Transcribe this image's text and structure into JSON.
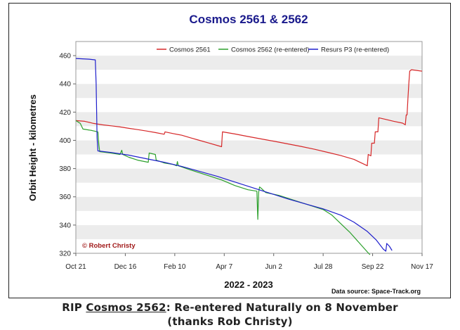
{
  "caption": {
    "prefix": "RIP ",
    "link_text": "Cosmos 2562",
    "suffix": ":  Re-entered Naturally on 8 November",
    "line2": "(thanks Rob Christy)"
  },
  "chart_data": {
    "type": "line",
    "title": "Cosmos 2561 & 2562",
    "xlabel": "2022 - 2023",
    "ylabel": "Orbit Height - kilometres",
    "ylim": [
      320,
      470
    ],
    "yticks": [
      320,
      340,
      360,
      380,
      400,
      420,
      440,
      460
    ],
    "xlim": [
      0,
      392
    ],
    "xticks": [
      {
        "label": "Oct 21",
        "day": 0
      },
      {
        "label": "Dec 16",
        "day": 56
      },
      {
        "label": "Feb 10",
        "day": 112
      },
      {
        "label": "Apr 7",
        "day": 168
      },
      {
        "label": "Jun 2",
        "day": 224
      },
      {
        "label": "Jul 28",
        "day": 280
      },
      {
        "label": "Sep 22",
        "day": 336
      },
      {
        "label": "Nov 17",
        "day": 392
      }
    ],
    "grid": true,
    "watermark": "© Robert Christy",
    "source_note": "Data source: Space-Track.org",
    "legend_position": "top",
    "series": [
      {
        "name": "Cosmos 2561",
        "color": "#d62728",
        "points": [
          [
            0,
            414
          ],
          [
            10,
            413.5
          ],
          [
            20,
            412
          ],
          [
            30,
            411
          ],
          [
            40,
            410.3
          ],
          [
            50,
            409.5
          ],
          [
            60,
            408.5
          ],
          [
            70,
            407.6
          ],
          [
            80,
            406.6
          ],
          [
            90,
            405.5
          ],
          [
            100,
            404.3
          ],
          [
            101,
            406
          ],
          [
            110,
            404.8
          ],
          [
            120,
            403.6
          ],
          [
            130,
            401.8
          ],
          [
            140,
            400
          ],
          [
            150,
            398.2
          ],
          [
            165,
            395.5
          ],
          [
            166,
            406
          ],
          [
            180,
            404.5
          ],
          [
            195,
            402.7
          ],
          [
            210,
            401
          ],
          [
            225,
            399.3
          ],
          [
            240,
            397.5
          ],
          [
            255,
            395.7
          ],
          [
            270,
            393.7
          ],
          [
            285,
            391.5
          ],
          [
            300,
            389.2
          ],
          [
            315,
            386.5
          ],
          [
            330,
            382
          ],
          [
            331,
            390
          ],
          [
            334,
            389
          ],
          [
            335,
            398
          ],
          [
            338,
            398
          ],
          [
            339,
            406
          ],
          [
            342,
            406
          ],
          [
            343,
            416
          ],
          [
            350,
            415
          ],
          [
            360,
            413.5
          ],
          [
            370,
            412.2
          ],
          [
            373,
            411
          ],
          [
            374,
            418
          ],
          [
            375,
            418
          ],
          [
            376,
            430
          ],
          [
            377,
            440
          ],
          [
            378,
            449
          ],
          [
            380,
            450
          ],
          [
            392,
            449
          ]
        ]
      },
      {
        "name": "Cosmos 2562 (re-entered)",
        "color": "#2ca02c",
        "points": [
          [
            0,
            414
          ],
          [
            5,
            412
          ],
          [
            8,
            408
          ],
          [
            18,
            407
          ],
          [
            25,
            406
          ],
          [
            26,
            397
          ],
          [
            27,
            392
          ],
          [
            40,
            391
          ],
          [
            50,
            390
          ],
          [
            52,
            393
          ],
          [
            53,
            390
          ],
          [
            60,
            388
          ],
          [
            70,
            386
          ],
          [
            82,
            384.5
          ],
          [
            83,
            391
          ],
          [
            90,
            390
          ],
          [
            91,
            386
          ],
          [
            100,
            384
          ],
          [
            110,
            383
          ],
          [
            114,
            382
          ],
          [
            115,
            385
          ],
          [
            116,
            382
          ],
          [
            130,
            379
          ],
          [
            140,
            377
          ],
          [
            150,
            375
          ],
          [
            165,
            372
          ],
          [
            180,
            368
          ],
          [
            195,
            365
          ],
          [
            205,
            364
          ],
          [
            206,
            344
          ],
          [
            207,
            363
          ],
          [
            208,
            367
          ],
          [
            210,
            366
          ],
          [
            215,
            363
          ],
          [
            230,
            361
          ],
          [
            250,
            357
          ],
          [
            265,
            354
          ],
          [
            280,
            351
          ],
          [
            290,
            347
          ],
          [
            300,
            341
          ],
          [
            310,
            335
          ],
          [
            320,
            328
          ],
          [
            330,
            321
          ],
          [
            333,
            319
          ]
        ]
      },
      {
        "name": "Resurs P3 (re-entered)",
        "color": "#1f1fcc",
        "points": [
          [
            0,
            458
          ],
          [
            15,
            457.5
          ],
          [
            22,
            457
          ],
          [
            23,
            440
          ],
          [
            23.5,
            420
          ],
          [
            24,
            402
          ],
          [
            25,
            392.5
          ],
          [
            40,
            391.4
          ],
          [
            60,
            389.5
          ],
          [
            80,
            387
          ],
          [
            100,
            384.5
          ],
          [
            120,
            381.5
          ],
          [
            140,
            378
          ],
          [
            160,
            374.5
          ],
          [
            180,
            370.5
          ],
          [
            200,
            366.5
          ],
          [
            220,
            362.5
          ],
          [
            240,
            358.5
          ],
          [
            260,
            355
          ],
          [
            280,
            351.5
          ],
          [
            300,
            347
          ],
          [
            315,
            342
          ],
          [
            330,
            335.5
          ],
          [
            340,
            329.5
          ],
          [
            348,
            323
          ],
          [
            351,
            321.5
          ],
          [
            352,
            327
          ],
          [
            355,
            325
          ],
          [
            358,
            322
          ]
        ]
      }
    ]
  }
}
